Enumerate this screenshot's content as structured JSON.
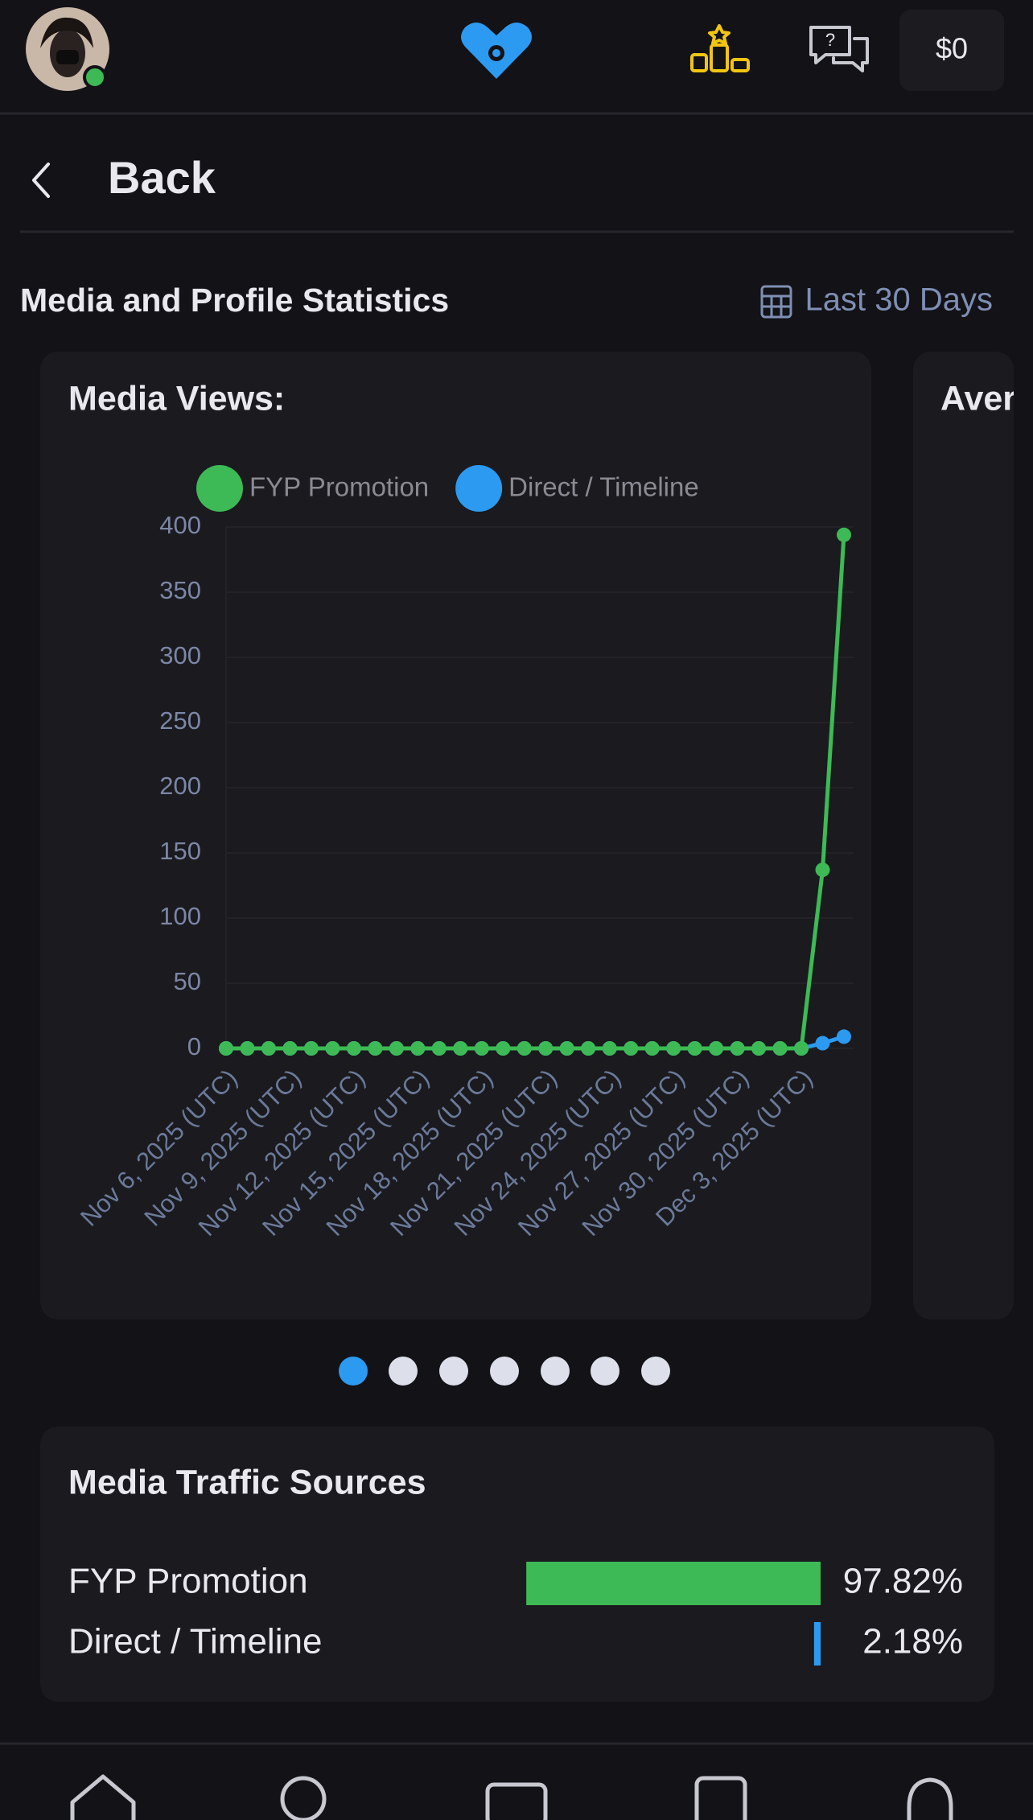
{
  "header": {
    "balance": "$0"
  },
  "nav": {
    "back": "Back"
  },
  "section": {
    "title": "Media and Profile Statistics",
    "range": "Last 30 Days"
  },
  "chart_data": {
    "type": "line",
    "title": "Media Views:",
    "categories": [
      "Nov 6, 2025 (UTC)",
      null,
      null,
      "Nov 9, 2025 (UTC)",
      null,
      null,
      "Nov 12, 2025 (UTC)",
      null,
      null,
      "Nov 15, 2025 (UTC)",
      null,
      null,
      "Nov 18, 2025 (UTC)",
      null,
      null,
      "Nov 21, 2025 (UTC)",
      null,
      null,
      "Nov 24, 2025 (UTC)",
      null,
      null,
      "Nov 27, 2025 (UTC)",
      null,
      null,
      "Nov 30, 2025 (UTC)",
      null,
      null,
      "Dec 3, 2025 (UTC)",
      null,
      null
    ],
    "series": [
      {
        "name": "FYP Promotion",
        "color": "#3dba55",
        "values": [
          0,
          0,
          0,
          0,
          0,
          0,
          0,
          0,
          0,
          0,
          0,
          0,
          0,
          0,
          0,
          0,
          0,
          0,
          0,
          0,
          0,
          0,
          0,
          0,
          0,
          0,
          0,
          0,
          137,
          394
        ]
      },
      {
        "name": "Direct / Timeline",
        "color": "#2c9af0",
        "values": [
          0,
          0,
          0,
          0,
          0,
          0,
          0,
          0,
          0,
          0,
          0,
          0,
          0,
          0,
          0,
          0,
          0,
          0,
          0,
          0,
          0,
          0,
          0,
          0,
          0,
          0,
          0,
          0,
          4,
          9
        ]
      }
    ],
    "ylim": [
      0,
      400
    ],
    "yticks": [
      0,
      50,
      100,
      150,
      200,
      250,
      300,
      350,
      400
    ],
    "grid": true,
    "legend": "top"
  },
  "next_card": {
    "title": "Aver"
  },
  "traffic": {
    "title": "Media Traffic Sources",
    "xlim": [
      0,
      100
    ],
    "rows": [
      {
        "name": "FYP Promotion",
        "color": "#3dba55",
        "value": 97.82,
        "value_label": "97.82%"
      },
      {
        "name": "Direct / Timeline",
        "color": "#2c9af0",
        "value": 2.18,
        "value_label": "2.18%"
      }
    ]
  }
}
